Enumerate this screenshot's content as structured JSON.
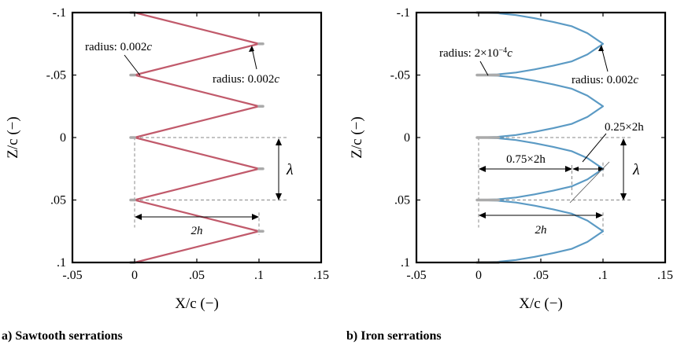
{
  "chart_data": [
    {
      "type": "line",
      "panel_label": "a) Sawtooth serrations",
      "xlabel": "X/c (−)",
      "ylabel": "Z/c (−)",
      "xlim": [
        -0.05,
        0.15
      ],
      "ylim": [
        -0.1,
        0.1
      ],
      "y_inverted": true,
      "x_ticks": [
        "-.05",
        "0",
        ".05",
        ".1",
        ".15"
      ],
      "y_ticks": [
        "-.1",
        "-.05",
        "0",
        ".05",
        ".1"
      ],
      "grid": false,
      "series": [
        {
          "color": "#c15a6b",
          "x": [
            0,
            0.1,
            0,
            0.1,
            0,
            0.1,
            0,
            0.1,
            0
          ],
          "y": [
            -0.1,
            -0.075,
            -0.05,
            -0.025,
            0,
            0.025,
            0.05,
            0.075,
            0.1
          ]
        }
      ],
      "annotations": {
        "radius_left": {
          "prefix": "radius: 0.002",
          "var": "c"
        },
        "radius_right": {
          "prefix": "radius: 0.002",
          "var": "c"
        },
        "lambda": "λ",
        "two_h": "2h"
      }
    },
    {
      "type": "line",
      "panel_label": "b) Iron serrations",
      "xlabel": "X/c (−)",
      "ylabel": "Z/c (−)",
      "xlim": [
        -0.05,
        0.15
      ],
      "ylim": [
        -0.1,
        0.1
      ],
      "y_inverted": true,
      "x_ticks": [
        "-.05",
        "0",
        ".05",
        ".1",
        ".15"
      ],
      "y_ticks": [
        "-.1",
        "-.05",
        "0",
        ".05",
        ".1"
      ],
      "grid": false,
      "series": [
        {
          "color": "#5b9ac4",
          "x": [
            0,
            0.015,
            0.03,
            0.045,
            0.06,
            0.075,
            0.0875,
            0.1,
            0.0875,
            0.075,
            0.06,
            0.045,
            0.03,
            0.015,
            0
          ],
          "y": [
            -0.1,
            -0.0995,
            -0.098,
            -0.0955,
            -0.0925,
            -0.089,
            -0.0835,
            -0.075,
            -0.0665,
            -0.061,
            -0.0575,
            -0.0545,
            -0.052,
            -0.0505,
            -0.05
          ]
        }
      ],
      "annotations": {
        "radius_left": {
          "prefix": "radius: 2×10",
          "sup": "−4",
          "var": "c"
        },
        "radius_right": {
          "prefix": "radius: 0.002",
          "var": "c"
        },
        "frac_025": "0.25×2h",
        "frac_075": "0.75×2h",
        "lambda": "λ",
        "two_h": "2h"
      }
    }
  ]
}
